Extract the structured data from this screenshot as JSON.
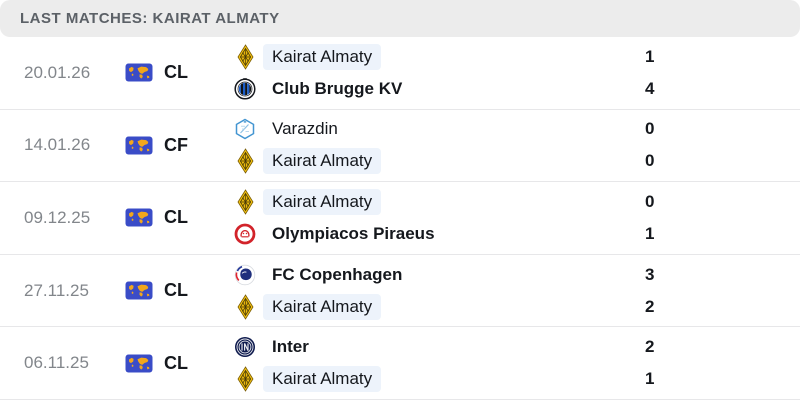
{
  "header": {
    "title": "LAST MATCHES: KAIRAT ALMATY"
  },
  "colors": {
    "header_bg": "#ececec",
    "header_text": "#5c6167",
    "date_text": "#82868b",
    "dark_text": "#15181d",
    "divider": "#e7e7e9",
    "highlight_bg": "#edf3fb",
    "flag_blue": "#3a4cc7",
    "flag_yellow": "#f2a71b"
  },
  "matches": [
    {
      "date": "20.01.26",
      "competition": "CL",
      "competition_icon": "world-flag-icon",
      "teams": [
        {
          "name": "Kairat Almaty",
          "score": "1",
          "winner": false,
          "highlighted": true,
          "logo_icon": "kairat-almaty-logo"
        },
        {
          "name": "Club Brugge KV",
          "score": "4",
          "winner": true,
          "highlighted": false,
          "logo_icon": "club-brugge-logo"
        }
      ]
    },
    {
      "date": "14.01.26",
      "competition": "CF",
      "competition_icon": "world-flag-icon",
      "teams": [
        {
          "name": "Varazdin",
          "score": "0",
          "winner": false,
          "highlighted": false,
          "logo_icon": "varazdin-logo"
        },
        {
          "name": "Kairat Almaty",
          "score": "0",
          "winner": false,
          "highlighted": true,
          "logo_icon": "kairat-almaty-logo"
        }
      ]
    },
    {
      "date": "09.12.25",
      "competition": "CL",
      "competition_icon": "world-flag-icon",
      "teams": [
        {
          "name": "Kairat Almaty",
          "score": "0",
          "winner": false,
          "highlighted": true,
          "logo_icon": "kairat-almaty-logo"
        },
        {
          "name": "Olympiacos Piraeus",
          "score": "1",
          "winner": true,
          "highlighted": false,
          "logo_icon": "olympiacos-logo"
        }
      ]
    },
    {
      "date": "27.11.25",
      "competition": "CL",
      "competition_icon": "world-flag-icon",
      "teams": [
        {
          "name": "FC Copenhagen",
          "score": "3",
          "winner": true,
          "highlighted": false,
          "logo_icon": "fc-copenhagen-logo"
        },
        {
          "name": "Kairat Almaty",
          "score": "2",
          "winner": false,
          "highlighted": true,
          "logo_icon": "kairat-almaty-logo"
        }
      ]
    },
    {
      "date": "06.11.25",
      "competition": "CL",
      "competition_icon": "world-flag-icon",
      "teams": [
        {
          "name": "Inter",
          "score": "2",
          "winner": true,
          "highlighted": false,
          "logo_icon": "inter-logo"
        },
        {
          "name": "Kairat Almaty",
          "score": "1",
          "winner": false,
          "highlighted": true,
          "logo_icon": "kairat-almaty-logo"
        }
      ]
    }
  ]
}
